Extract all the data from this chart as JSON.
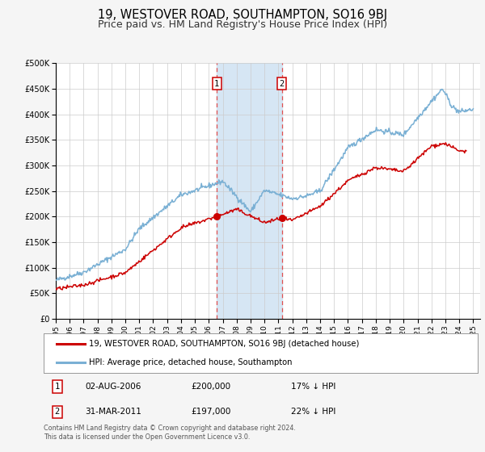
{
  "title": "19, WESTOVER ROAD, SOUTHAMPTON, SO16 9BJ",
  "subtitle": "Price paid vs. HM Land Registry's House Price Index (HPI)",
  "title_fontsize": 10.5,
  "subtitle_fontsize": 9,
  "bg_color": "#f5f5f5",
  "plot_bg_color": "#ffffff",
  "grid_color": "#cccccc",
  "sale1_date": 2006.58,
  "sale1_price": 200000,
  "sale2_date": 2011.25,
  "sale2_price": 197000,
  "sale1_label": "1",
  "sale2_label": "2",
  "shade_color": "#cfe2f3",
  "dashed_color": "#e05050",
  "marker_color": "#cc0000",
  "hpi_line_color": "#7ab0d4",
  "price_line_color": "#cc0000",
  "ylim": [
    0,
    500000
  ],
  "xlim_start": 1995.0,
  "xlim_end": 2025.5,
  "legend1": "19, WESTOVER ROAD, SOUTHAMPTON, SO16 9BJ (detached house)",
  "legend2": "HPI: Average price, detached house, Southampton",
  "note1_label": "1",
  "note1_date": "02-AUG-2006",
  "note1_price": "£200,000",
  "note1_hpi": "17% ↓ HPI",
  "note2_label": "2",
  "note2_date": "31-MAR-2011",
  "note2_price": "£197,000",
  "note2_hpi": "22% ↓ HPI",
  "footer": "Contains HM Land Registry data © Crown copyright and database right 2024.\nThis data is licensed under the Open Government Licence v3.0."
}
